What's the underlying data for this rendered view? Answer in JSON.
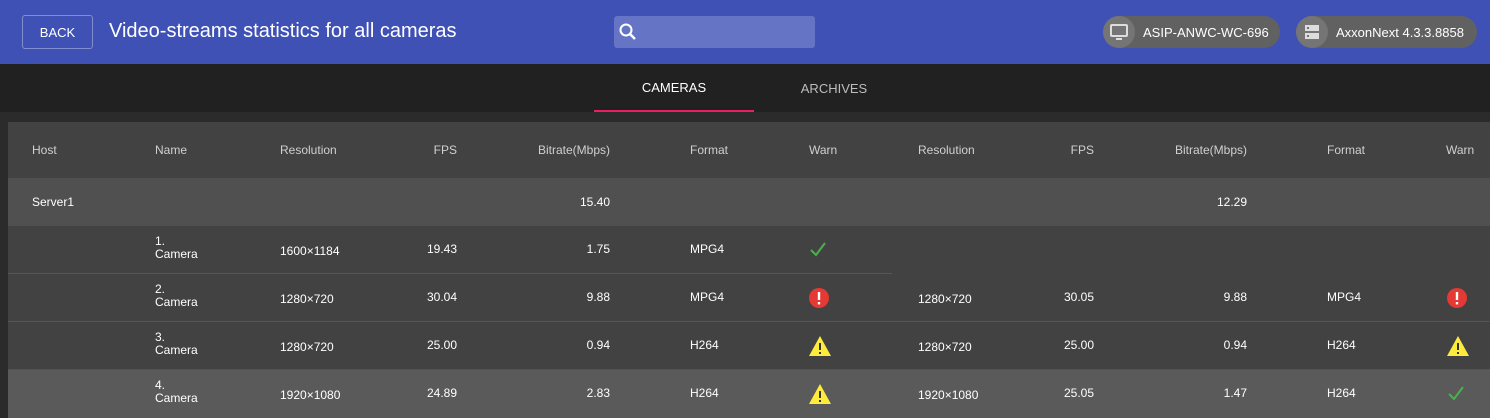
{
  "header": {
    "back_label": "BACK",
    "title": "Video-streams statistics for all cameras",
    "search_placeholder": "",
    "host_chip": "ASIP-ANWC-WC-696",
    "version_chip": "AxxonNext 4.3.3.8858"
  },
  "tabs": [
    {
      "label": "CAMERAS",
      "active": true
    },
    {
      "label": "ARCHIVES",
      "active": false
    }
  ],
  "columns": [
    "Host",
    "Name",
    "Resolution",
    "FPS",
    "Bitrate(Mbps)",
    "Format",
    "Warn",
    "Resolution",
    "FPS",
    "Bitrate(Mbps)",
    "Format",
    "Warn"
  ],
  "server": {
    "host": "Server1",
    "bitrate1": "15.40",
    "bitrate2": "12.29"
  },
  "rows": [
    {
      "num": "1.",
      "name": "Camera",
      "res1": "1600×1184",
      "fps1": "19.43",
      "br1": "1.75",
      "fmt1": "MPG4",
      "warn1": "ok",
      "res2": "",
      "fps2": "",
      "br2": "",
      "fmt2": "",
      "warn2": ""
    },
    {
      "num": "2.",
      "name": "Camera",
      "res1": "1280×720",
      "fps1": "30.04",
      "br1": "9.88",
      "fmt1": "MPG4",
      "warn1": "error",
      "res2": "1280×720",
      "fps2": "30.05",
      "br2": "9.88",
      "fmt2": "MPG4",
      "warn2": "error"
    },
    {
      "num": "3.",
      "name": "Camera",
      "res1": "1280×720",
      "fps1": "25.00",
      "br1": "0.94",
      "fmt1": "H264",
      "warn1": "warning",
      "res2": "1280×720",
      "fps2": "25.00",
      "br2": "0.94",
      "fmt2": "H264",
      "warn2": "warning"
    },
    {
      "num": "4.",
      "name": "Camera",
      "res1": "1920×1080",
      "fps1": "24.89",
      "br1": "2.83",
      "fmt1": "H264",
      "warn1": "warning",
      "res2": "1920×1080",
      "fps2": "25.05",
      "br2": "1.47",
      "fmt2": "H264",
      "warn2": "ok"
    }
  ],
  "colors": {
    "header": "#3f51b5",
    "accent": "#e91e63",
    "ok": "#4caf50",
    "error": "#e53935",
    "warning": "#ffeb3b"
  }
}
